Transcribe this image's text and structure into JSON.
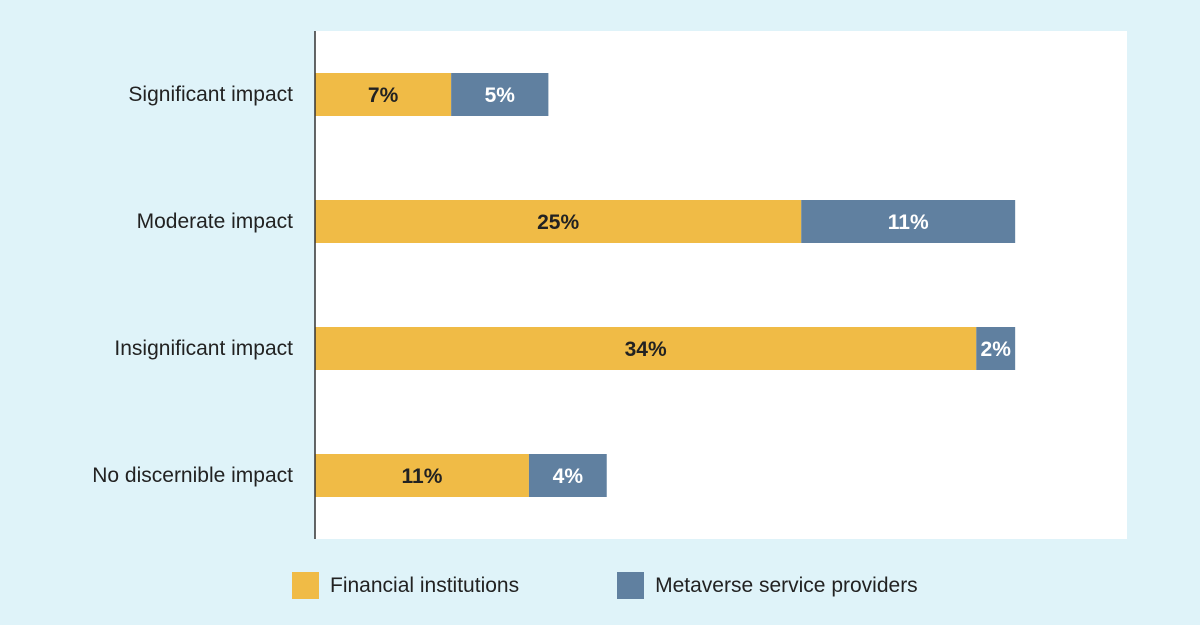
{
  "chart_data": {
    "type": "bar",
    "orientation": "horizontal",
    "stacked": true,
    "categories": [
      "Significant impact",
      "Moderate impact",
      "Insignificant impact",
      "No discernible impact"
    ],
    "series": [
      {
        "name": "Financial institutions",
        "values": [
          7,
          25,
          34,
          11
        ],
        "labels": [
          "7%",
          "25%",
          "34%",
          "11%"
        ],
        "color": "#f0bb46",
        "label_color": "#222222"
      },
      {
        "name": "Metaverse service providers",
        "values": [
          5,
          11,
          2,
          4
        ],
        "labels": [
          "5%",
          "11%",
          "2%",
          "4%"
        ],
        "color": "#6080a0",
        "label_color": "#ffffff"
      }
    ],
    "xlim": [
      0,
      41.75
    ],
    "grid": false,
    "legend": "bottom"
  },
  "colors": {
    "page_background": "#dff3f9",
    "plot_background": "#ffffff",
    "axis": "#333333"
  }
}
